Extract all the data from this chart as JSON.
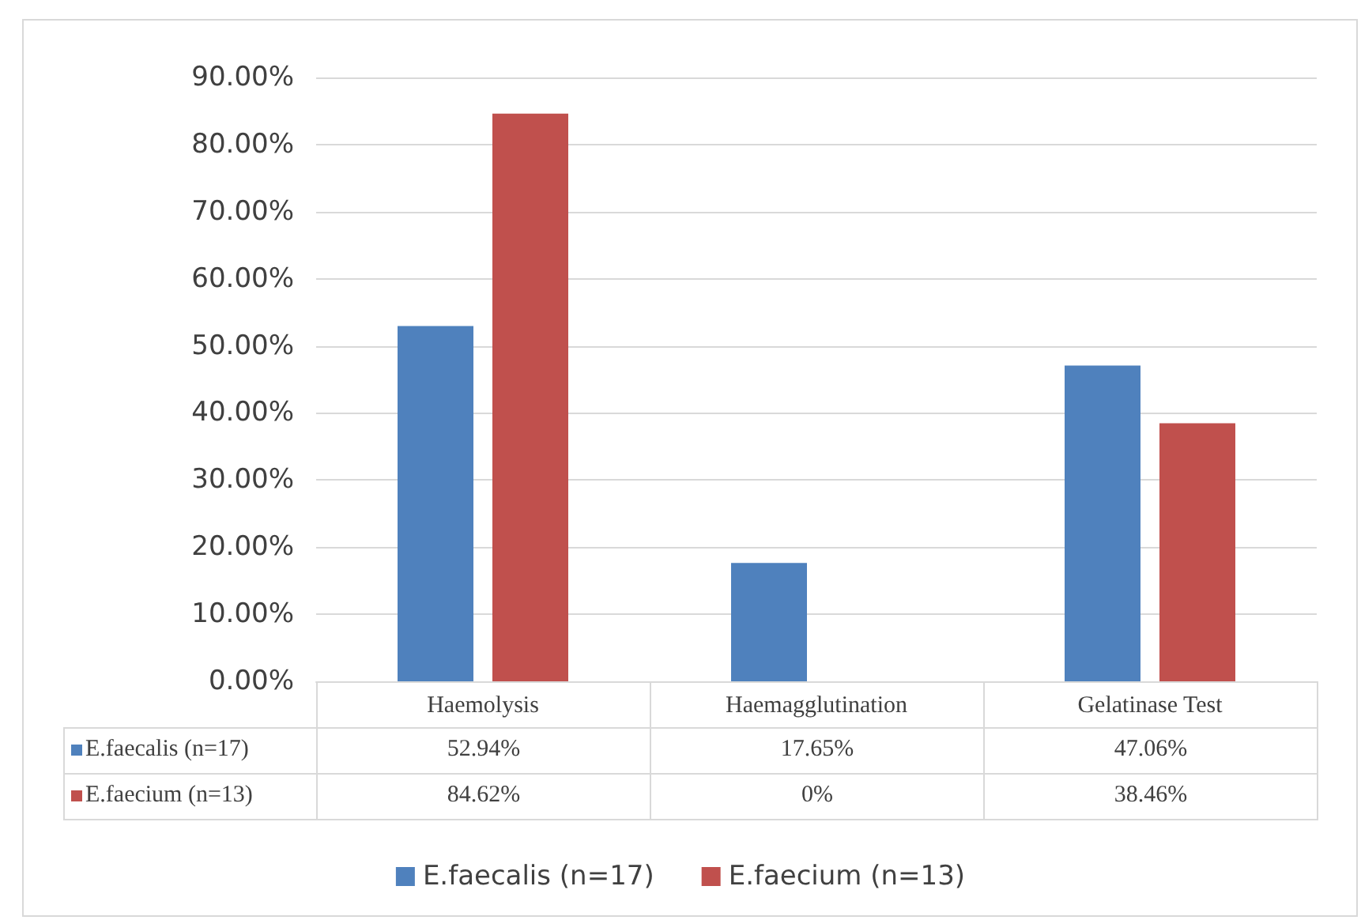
{
  "chart_data": {
    "type": "bar",
    "categories": [
      "Haemolysis",
      "Haemagglutination",
      "Gelatinase Test"
    ],
    "series": [
      {
        "name": "E.faecalis (n=17)",
        "color": "#4f81bd",
        "values": [
          52.94,
          17.65,
          47.06
        ],
        "value_labels": [
          "52.94%",
          "17.65%",
          "47.06%"
        ]
      },
      {
        "name": "E.faecium (n=13)",
        "color": "#c0504d",
        "values": [
          84.62,
          0,
          38.46
        ],
        "value_labels": [
          "84.62%",
          "0%",
          "38.46%"
        ]
      }
    ],
    "ylim": [
      0,
      90
    ],
    "yticks": [
      {
        "value": 0,
        "label": "0.00%"
      },
      {
        "value": 10,
        "label": "10.00%"
      },
      {
        "value": 20,
        "label": "20.00%"
      },
      {
        "value": 30,
        "label": "30.00%"
      },
      {
        "value": 40,
        "label": "40.00%"
      },
      {
        "value": 50,
        "label": "50.00%"
      },
      {
        "value": 60,
        "label": "60.00%"
      },
      {
        "value": 70,
        "label": "70.00%"
      },
      {
        "value": 80,
        "label": "80.00%"
      },
      {
        "value": 90,
        "label": "90.00%"
      }
    ],
    "grid": "y",
    "legend": "bottom"
  }
}
